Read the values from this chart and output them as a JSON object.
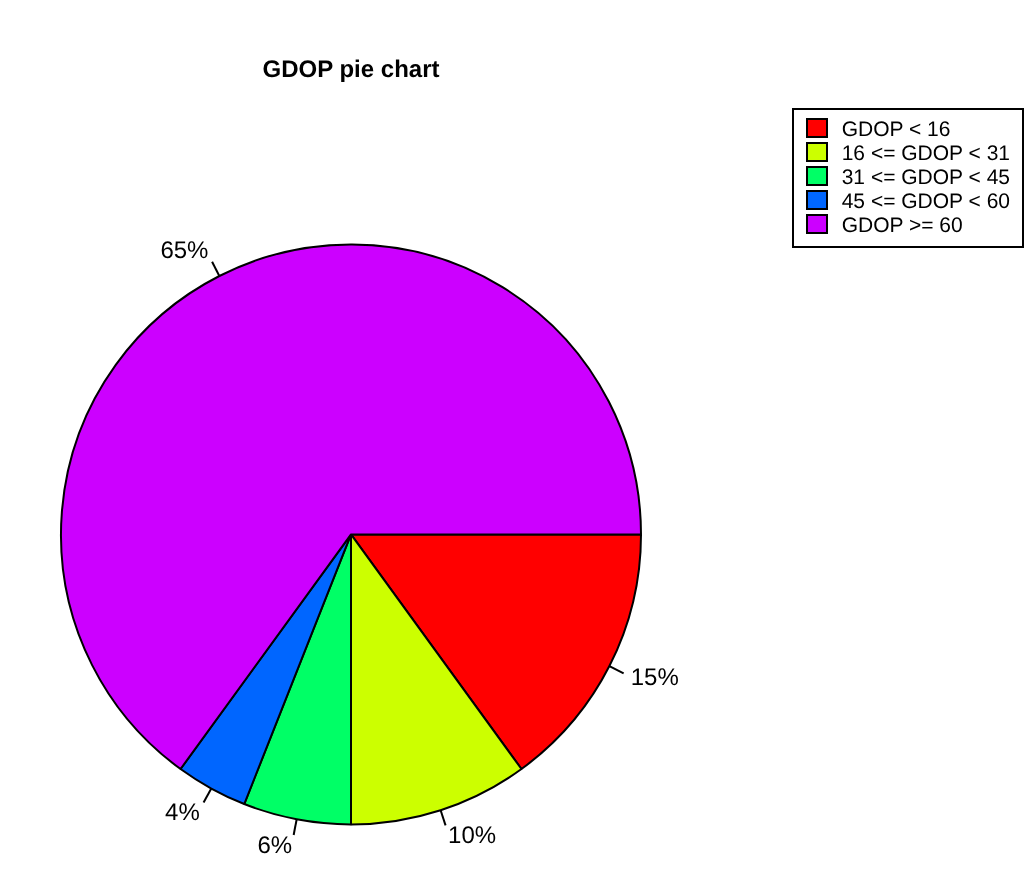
{
  "chart_data": {
    "type": "pie",
    "title": "GDOP pie chart",
    "categories": [
      "GDOP < 16",
      "16 <= GDOP < 31",
      "31 <= GDOP < 45",
      "45 <= GDOP < 60",
      "GDOP >= 60"
    ],
    "values": [
      15,
      10,
      6,
      4,
      65
    ],
    "colors": [
      "#ff0000",
      "#ccff00",
      "#00ff66",
      "#0066ff",
      "#cc00ff"
    ],
    "value_labels": [
      "15%",
      "10%",
      "6%",
      "4%",
      "65%"
    ],
    "legend": "top right"
  }
}
